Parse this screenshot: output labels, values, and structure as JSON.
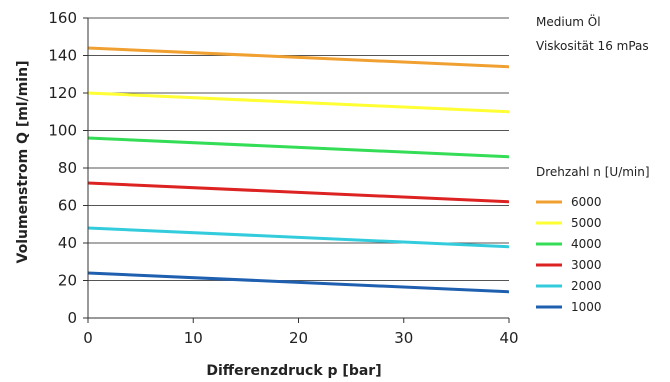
{
  "chart_data": {
    "type": "line",
    "title": "",
    "xlabel": "Differenzdruck p [bar]",
    "ylabel": "Volumenstrom Q [ml/min]",
    "xlim": [
      0,
      40
    ],
    "ylim": [
      0,
      160
    ],
    "xticks": [
      0,
      10,
      20,
      30,
      40
    ],
    "yticks": [
      0,
      20,
      40,
      60,
      80,
      100,
      120,
      140,
      160
    ],
    "grid": "horizontal",
    "notes": [
      "Medium Öl",
      "Viskosität 16 mPas"
    ],
    "legend_title": "Drehzahl n [U/min]",
    "legend_position": "right",
    "x": [
      0,
      40
    ],
    "series": [
      {
        "name": "6000",
        "color": "#f0a030",
        "values": [
          144,
          134
        ]
      },
      {
        "name": "5000",
        "color": "#ffff33",
        "values": [
          120,
          110
        ]
      },
      {
        "name": "4000",
        "color": "#33dd55",
        "values": [
          96,
          86
        ]
      },
      {
        "name": "3000",
        "color": "#dd2222",
        "values": [
          72,
          62
        ]
      },
      {
        "name": "2000",
        "color": "#33ccdd",
        "values": [
          48,
          38
        ]
      },
      {
        "name": "1000",
        "color": "#1f5fb0",
        "values": [
          24,
          14
        ]
      }
    ]
  }
}
